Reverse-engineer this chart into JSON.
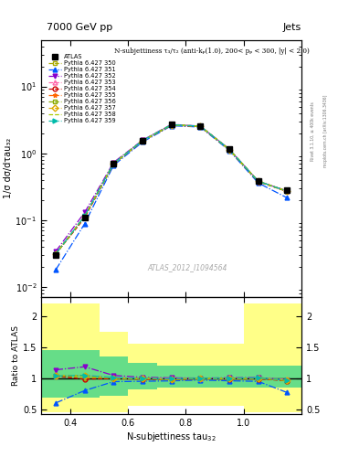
{
  "title_left": "7000 GeV pp",
  "title_right": "Jets",
  "annotation": "N-subjettiness τ₃/τ₂ (anti-kₚ(1.0), 200< pₚ < 300, |y| < 2.0)",
  "watermark": "ATLAS_2012_I1094564",
  "rivet_label": "Rivet 3.1.10, ≥ 400k events",
  "mcplots_label": "mcplots.cern.ch [arXiv:1306.3436]",
  "ylabel_main": "1/σ dσ/dτau₃₂",
  "ylabel_ratio": "Ratio to ATLAS",
  "xlabel": "N-subjettiness tau",
  "xlim": [
    0.3,
    1.2
  ],
  "ylim_main": [
    0.007,
    50
  ],
  "ylim_ratio": [
    0.42,
    2.3
  ],
  "x_ticks": [
    0.4,
    0.6,
    0.8,
    1.0
  ],
  "ratio_yticks": [
    0.5,
    1.0,
    1.5,
    2.0
  ],
  "ratio_yticklabels": [
    "0.5",
    "1",
    "1.5",
    "2"
  ],
  "x_values": [
    0.35,
    0.45,
    0.55,
    0.65,
    0.75,
    0.85,
    0.95,
    1.05,
    1.15
  ],
  "atlas_y": [
    0.03,
    0.11,
    0.7,
    1.55,
    2.7,
    2.55,
    1.15,
    0.38,
    0.28
  ],
  "series": [
    {
      "label": "Pythia 6.427 350",
      "color": "#aaaa00",
      "marker": "s",
      "marker_fill": "none",
      "linestyle": "--",
      "y": [
        0.031,
        0.11,
        0.695,
        1.54,
        2.67,
        2.54,
        1.145,
        0.38,
        0.268
      ]
    },
    {
      "label": "Pythia 6.427 351",
      "color": "#0055ff",
      "marker": "^",
      "marker_fill": "full",
      "linestyle": "-.",
      "y": [
        0.018,
        0.088,
        0.66,
        1.47,
        2.58,
        2.47,
        1.1,
        0.36,
        0.215
      ]
    },
    {
      "label": "Pythia 6.427 352",
      "color": "#8800cc",
      "marker": "v",
      "marker_fill": "full",
      "linestyle": "-.",
      "y": [
        0.034,
        0.13,
        0.73,
        1.57,
        2.71,
        2.55,
        1.155,
        0.383,
        0.272
      ]
    },
    {
      "label": "Pythia 6.427 353",
      "color": "#ff66aa",
      "marker": "^",
      "marker_fill": "none",
      "linestyle": "--",
      "y": [
        0.031,
        0.115,
        0.705,
        1.55,
        2.68,
        2.54,
        1.145,
        0.381,
        0.274
      ]
    },
    {
      "label": "Pythia 6.427 354",
      "color": "#cc0000",
      "marker": "o",
      "marker_fill": "none",
      "linestyle": "--",
      "y": [
        0.031,
        0.108,
        0.695,
        1.52,
        2.63,
        2.52,
        1.13,
        0.375,
        0.268
      ]
    },
    {
      "label": "Pythia 6.427 355",
      "color": "#ff6600",
      "marker": "*",
      "marker_fill": "full",
      "linestyle": "--",
      "y": [
        0.031,
        0.114,
        0.7,
        1.54,
        2.65,
        2.53,
        1.14,
        0.38,
        0.27
      ]
    },
    {
      "label": "Pythia 6.427 356",
      "color": "#88aa00",
      "marker": "s",
      "marker_fill": "none",
      "linestyle": "--",
      "y": [
        0.031,
        0.114,
        0.7,
        1.54,
        2.65,
        2.54,
        1.14,
        0.38,
        0.27
      ]
    },
    {
      "label": "Pythia 6.427 357",
      "color": "#ddaa00",
      "marker": "D",
      "marker_fill": "none",
      "linestyle": "--",
      "y": [
        0.031,
        0.114,
        0.7,
        1.54,
        2.65,
        2.54,
        1.14,
        0.38,
        0.27
      ]
    },
    {
      "label": "Pythia 6.427 358",
      "color": "#aacc00",
      "marker": "None",
      "marker_fill": "none",
      "linestyle": "--",
      "y": [
        0.031,
        0.114,
        0.7,
        1.54,
        2.65,
        2.54,
        1.14,
        0.38,
        0.27
      ]
    },
    {
      "label": "Pythia 6.427 359",
      "color": "#00bbaa",
      "marker": ">",
      "marker_fill": "full",
      "linestyle": "-.",
      "y": [
        0.031,
        0.115,
        0.705,
        1.545,
        2.67,
        2.545,
        1.145,
        0.381,
        0.271
      ]
    }
  ],
  "yellow_band_edges": [
    0.3,
    0.5,
    0.6,
    0.7,
    1.0,
    1.2
  ],
  "yellow_hi": [
    2.2,
    1.75,
    1.55,
    1.55,
    2.2,
    2.2
  ],
  "yellow_lo": [
    0.45,
    0.45,
    0.55,
    0.55,
    0.45,
    0.45
  ],
  "green_band_edges": [
    0.3,
    0.5,
    0.6,
    0.7,
    1.0,
    1.2
  ],
  "green_hi": [
    1.45,
    1.35,
    1.25,
    1.2,
    1.2,
    1.45
  ],
  "green_lo": [
    0.68,
    0.72,
    0.82,
    0.85,
    0.85,
    0.68
  ]
}
